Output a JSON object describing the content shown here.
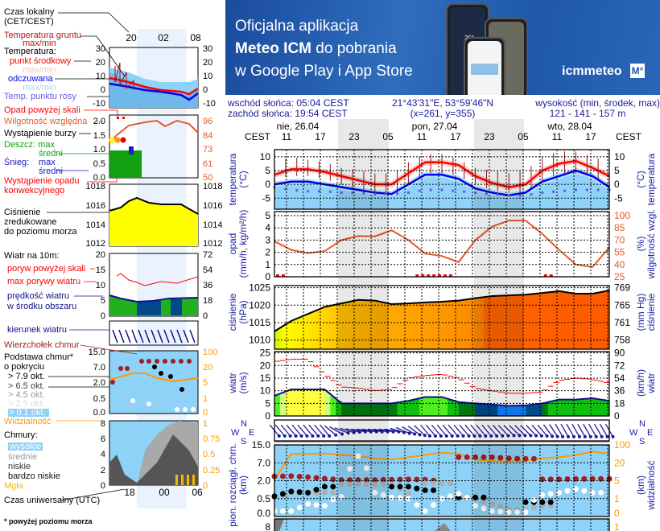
{
  "banner": {
    "line1": "Oficjalna aplikacja",
    "line2_bold": "Meteo ICM",
    "line2_rest": " do pobrania",
    "line3": "w Google Play i App Store",
    "logo_text": "icmmeteo",
    "logo_badge": "M°",
    "phone_temp": "25°"
  },
  "info": {
    "sunrise": "wschód słońca: 05:04 CEST",
    "sunset": "zachód słońca: 19:54 CEST",
    "coords": "21°43'31\"E, 53°59'46\"N",
    "grid": "(x=261,  y=355)",
    "elevation_label": "wysokość (min, środek, max)",
    "elevation_value": "121 - 141 - 157 m"
  },
  "legend": {
    "local_time": "Czas lokalny",
    "local_time_zone": "(CET/CEST)",
    "ground_temp": "Temperatura gruntu",
    "ground_temp_mm": "max/min",
    "temperature": "Temperatura:",
    "mid_point": "punkt środkowy",
    "mid_mm": "max/min",
    "feels_like": "odczuwana",
    "feels_mm": "max/min",
    "dew_point": "Temp. punktu rosy",
    "precip_above": "Opad powyżej skali",
    "humidity": "Wilgotność względna",
    "storm": "Wystąpienie burzy",
    "rain": "Deszcz: max",
    "rain_avg": "średni",
    "snow": "Śnieg:",
    "snow_max": "max",
    "snow_avg": "średni",
    "convective": "Wystąpienie opadu",
    "convective2": "konwekcyjnego",
    "pressure1": "Ciśnienie",
    "pressure2": "zredukowane",
    "pressure3": "do poziomu morza",
    "wind10": "Wiatr na 10m:",
    "gust_above": "poryw powyżej skali",
    "gust_max": "max porywy wiatru",
    "wind_speed1": "prędkość wiatru",
    "wind_speed2": "w środku obszaru",
    "wind_dir": "kierunek wiatru",
    "cloud_top": "Wierzchołek chmur",
    "cloud_base1": "Podstawa chmur*",
    "cloud_base2": "o pokryciu",
    "okt79": "> 7.9 okt.",
    "okt65": "> 6.5 okt.",
    "okt45": "> 4.5 okt.",
    "okt25": "> 2.5 okt.",
    "okt01": "> 0.1 okt.",
    "visibility": "Widzialność",
    "clouds": "Chmury:",
    "high": "wysokie",
    "mid": "średnie",
    "low": "niskie",
    "very_low": "bardzo niskie",
    "fog": "Mgła",
    "utc": "Czas uniwersalny (UTC)",
    "footnote": "* powyżej poziomu morza",
    "top_hours": [
      "20",
      "02",
      "08"
    ],
    "bottom_hours": [
      "18",
      "00",
      "06"
    ],
    "ticks": {
      "temp_l": [
        "30",
        "20",
        "10",
        "0",
        "-10"
      ],
      "temp_r": [
        "30",
        "20",
        "10",
        "0",
        "-10"
      ],
      "prec_l": [
        "2.0",
        "1.5",
        "1.0",
        "0.5",
        "0.0"
      ],
      "prec_r": [
        "96",
        "84",
        "73",
        "61",
        "50"
      ],
      "pres_l": [
        "1018",
        "1016",
        "1014",
        "1012"
      ],
      "pres_r": [
        "1018",
        "1016",
        "1014",
        "1012"
      ],
      "wind_l": [
        "20",
        "15",
        "10",
        "5",
        "0"
      ],
      "wind_r": [
        "72",
        "54",
        "36",
        "18",
        "0"
      ],
      "cld_l": [
        "15.0",
        "7.0",
        "2.0",
        "0.5",
        "0.0"
      ],
      "cld_r": [
        "100",
        "20",
        "5",
        "1",
        "0"
      ],
      "cov_l": [
        "8",
        "6",
        "4",
        "2",
        "0"
      ],
      "cov_r": [
        "1",
        "0.75",
        "0.5",
        "0.25",
        "0"
      ]
    }
  },
  "main": {
    "tz_label": "CEST",
    "days": [
      "nie, 26.04",
      "pon, 27.04",
      "wto, 28.04"
    ],
    "hour_labels": [
      "11",
      "17",
      "23",
      "05",
      "11",
      "17",
      "23",
      "05",
      "11",
      "17"
    ],
    "compass": {
      "n": "N",
      "w": "W",
      "e": "E",
      "s": "S"
    },
    "axes": {
      "temp_l": [
        "temperatura",
        "(°C)"
      ],
      "temp_r": [
        "(°C)",
        "temperatura"
      ],
      "prec_l": [
        "opad",
        "(mm/h, kg/m²/h)"
      ],
      "prec_r": [
        "(%)",
        "wilgotność wzgl."
      ],
      "pres_l": [
        "ciśnienie",
        "(hPa)"
      ],
      "pres_r": [
        "(mm Hg)",
        "ciśnienie"
      ],
      "wind_l": [
        "wiatr",
        "(m/s)"
      ],
      "wind_r": [
        "(km/h)",
        "wiatr"
      ],
      "cld_l": [
        "pion. rozciągł. chm.",
        "(km)"
      ],
      "cld_r": [
        "(km)",
        "widzialność"
      ]
    },
    "ticks": {
      "temp_l": [
        "10",
        "5",
        "0",
        "-5"
      ],
      "temp_r": [
        "10",
        "5",
        "0",
        "-5"
      ],
      "prec_l": [
        "5",
        "4",
        "3",
        "2",
        "1",
        "0"
      ],
      "prec_r": [
        "100",
        "85",
        "70",
        "55",
        "40",
        "25"
      ],
      "pres_l": [
        "1025",
        "1020",
        "1015",
        "1010"
      ],
      "pres_r": [
        "769",
        "765",
        "761",
        "758"
      ],
      "wind_l": [
        "25",
        "20",
        "15",
        "10",
        "5",
        "0"
      ],
      "wind_r": [
        "90",
        "72",
        "54",
        "36",
        "18",
        "0"
      ],
      "cld_l": [
        "15.0",
        "7.0",
        "2.0",
        "0.5",
        "0.0"
      ],
      "cld_r": [
        "100",
        "20",
        "5",
        "1",
        "0"
      ],
      "cov_l": [
        "8"
      ],
      "cov_r": [
        "1"
      ]
    }
  },
  "colors": {
    "temp": "#ff0000",
    "feels": "#0000ee",
    "dew": "#6a5ae0",
    "ground": "#a01010",
    "humidity": "#e8582a",
    "pressure_line": "#000000",
    "wind_line": "#10108a",
    "gust": "#ff0000",
    "cloud_bg": "#8ed2f8",
    "visibility": "#ff9900",
    "axis_text": "#1a1aa8"
  },
  "chart_data": {
    "type": "line",
    "times": [
      "26.04 09:00",
      "26.04 12:00",
      "26.04 15:00",
      "26.04 18:00",
      "26.04 21:00",
      "27.04 00:00",
      "27.04 03:00",
      "27.04 06:00",
      "27.04 09:00",
      "27.04 12:00",
      "27.04 15:00",
      "27.04 18:00",
      "27.04 21:00",
      "28.04 00:00",
      "28.04 03:00",
      "28.04 06:00",
      "28.04 09:00",
      "28.04 12:00",
      "28.04 15:00",
      "28.04 18:00",
      "28.04 21:00"
    ],
    "temperature_c": [
      3.5,
      5.5,
      5.5,
      4.5,
      3,
      1.5,
      0,
      0,
      4,
      8,
      8,
      7,
      3,
      0.5,
      -1,
      0,
      5,
      7.5,
      8.5,
      6,
      3
    ],
    "feels_like_c": [
      0,
      1,
      1,
      0,
      -1,
      -2,
      -3,
      -3.5,
      0,
      3.5,
      3.5,
      2,
      -1.5,
      -3,
      -4,
      -3,
      1,
      3,
      5,
      3,
      -1
    ],
    "dew_point_c": [
      -1,
      -2,
      -2.5,
      -2.5,
      -3,
      -3,
      -3.5,
      -3.5,
      -3,
      -2,
      -2,
      -2.5,
      -3,
      -3.5,
      -4,
      -4,
      -3,
      -2.5,
      -2,
      -2,
      -2
    ],
    "ground_max_c": [
      8,
      10,
      9,
      8,
      6,
      5,
      4,
      4,
      8,
      11,
      11,
      9,
      6,
      5,
      4,
      5,
      10,
      12,
      12,
      10,
      8
    ],
    "ground_min_c": [
      2,
      3,
      3,
      2,
      0,
      -2,
      -3,
      -3,
      0,
      4,
      4,
      3,
      0,
      -2,
      -3,
      -3,
      1,
      4,
      4,
      3,
      0
    ],
    "temp_ylim": [
      -9,
      12.6
    ],
    "precip_mm_h": [
      0,
      0,
      0,
      0,
      0,
      0,
      0,
      0,
      0,
      0,
      0,
      0,
      0,
      0,
      0,
      0,
      0,
      0,
      0,
      0,
      0
    ],
    "precip_ylim": [
      0,
      5
    ],
    "precip_marks": [
      "26.04 09:00",
      "26.04 10:00",
      "27.04 10:00",
      "27.04 11:00",
      "27.04 12:00",
      "27.04 13:00",
      "27.04 14:00",
      "27.04 15:00",
      "27.04 16:00",
      "28.04 09:00",
      "28.04 10:00"
    ],
    "humidity_pct": [
      68.5,
      58,
      54,
      56.5,
      70,
      75,
      74.5,
      82,
      70,
      53.5,
      50.5,
      43,
      70,
      86.5,
      94,
      94,
      77.5,
      58,
      40,
      37,
      61
    ],
    "humidity_ylim": [
      25,
      100
    ],
    "pressure_hpa": [
      1012.5,
      1015.5,
      1017.5,
      1019.5,
      1020.5,
      1021.5,
      1021.3,
      1020.3,
      1020.5,
      1020.8,
      1021,
      1021.3,
      1022,
      1022.6,
      1022.8,
      1023,
      1023.5,
      1024,
      1023.3,
      1023.3,
      1024.2
    ],
    "pressure_ylim": [
      1007.4,
      1025.6
    ],
    "wind_speed_ms": [
      8,
      10.5,
      10.5,
      10.5,
      5,
      5,
      5,
      5,
      6,
      7.5,
      7.5,
      5.5,
      5,
      4.5,
      4,
      4.2,
      5,
      6.5,
      6.5,
      7,
      6
    ],
    "wind_gust_ms": [
      21.5,
      22.5,
      22.5,
      16.5,
      11.5,
      11,
      10,
      10.5,
      15,
      16,
      16.5,
      15,
      11,
      10,
      9,
      9,
      9.5,
      14,
      15,
      14.5,
      13
    ],
    "wind_ylim": [
      0,
      25.5
    ],
    "wind_dir_deg": [
      320,
      320,
      320,
      320,
      290,
      280,
      280,
      280,
      300,
      320,
      320,
      320,
      320,
      320,
      315,
      315,
      320,
      330,
      330,
      330,
      330
    ],
    "cloud_top_km": [
      3.2,
      3.3,
      3.0,
      2.6,
      2.2,
      null,
      2.2,
      2.3,
      2.4,
      2.3,
      1.8,
      null,
      9.5,
      9.5,
      9.0,
      8.8,
      null,
      2.4,
      2.5,
      2.5,
      2.5
    ],
    "cloud_base_79_km": [
      0.7,
      1.1,
      1.0,
      1.5,
      null,
      null,
      null,
      null,
      1.5,
      1.2,
      null,
      null,
      0.6,
      null,
      null,
      null,
      0.4,
      null,
      null,
      null,
      null
    ],
    "cloud_base_45_km": [
      0.6,
      1.0,
      0.9,
      1.0,
      null,
      1.7,
      1.7,
      1.7,
      0.9,
      1.8,
      1.8,
      null,
      0.5,
      0.35,
      0.2,
      0.2,
      0.3,
      null,
      null,
      null,
      null
    ],
    "cloud_base_01_km": [
      0.15,
      0.15,
      0.35,
      0.3,
      0.65,
      10,
      1.0,
      0.6,
      0.5,
      0.15,
      0.5,
      0.9,
      0.3,
      0.15,
      0.12,
      0.12,
      0.8,
      1.0,
      1.3,
      1.0,
      null
    ],
    "cloud_axis_ticks_km": [
      0,
      0.5,
      2,
      7,
      15
    ],
    "visibility_km": [
      6,
      60,
      60,
      62,
      55,
      50,
      40,
      35,
      45,
      55,
      65,
      60,
      35,
      28,
      26,
      30,
      40,
      45,
      55,
      70,
      60
    ],
    "visibility_axis_ticks_km": [
      0,
      1,
      5,
      20,
      100
    ],
    "grid": true
  }
}
